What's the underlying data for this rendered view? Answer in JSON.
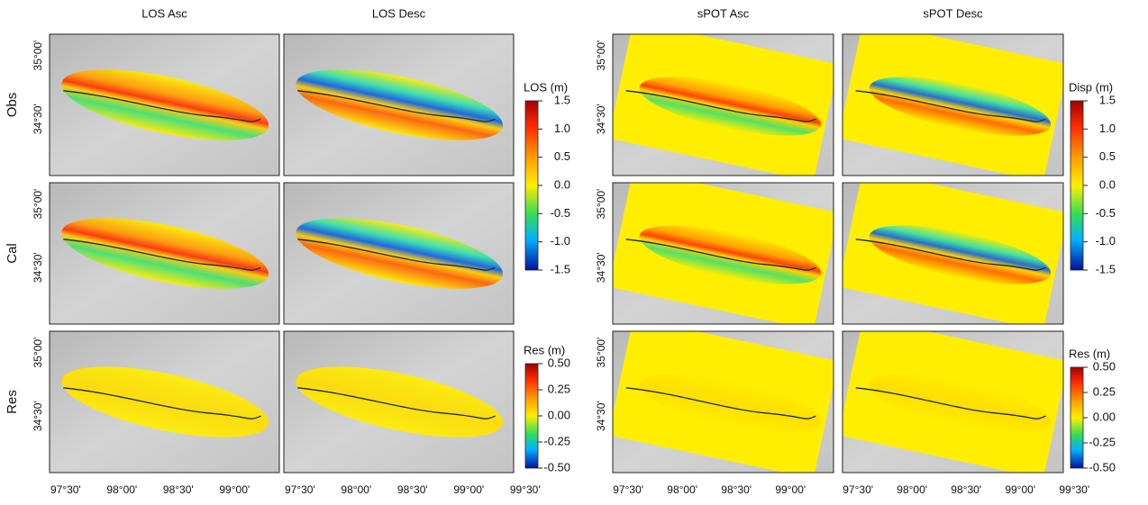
{
  "columns": [
    "LOS Asc",
    "LOS Desc",
    "sPOT Asc",
    "sPOT Desc"
  ],
  "rows": [
    "Obs",
    "Cal",
    "Res"
  ],
  "lon_ticks": [
    "97°30'",
    "98°00'",
    "98°30'",
    "99°00'",
    "99°30'"
  ],
  "lat_ticks": [
    "35°00'",
    "34°30'"
  ],
  "colorbars": [
    {
      "label": "LOS (m)",
      "lim": [
        -1.5,
        1.5
      ],
      "ticks": [
        1.5,
        {
          "value": 1,
          "label": "1.0"
        },
        0.5,
        {
          "value": 0,
          "label": "0.0"
        },
        -0.5,
        {
          "value": -1,
          "label": "-1.0"
        },
        -1.5
      ]
    },
    {
      "label": "Res (m)",
      "lim": [
        -0.5,
        0.5
      ],
      "ticks": [
        {
          "value": 0.5,
          "label": "0.50"
        },
        0.25,
        {
          "value": 0,
          "label": "0.00"
        },
        -0.25,
        {
          "value": -0.5,
          "label": "-0.50"
        }
      ]
    },
    {
      "label": "Disp (m)",
      "lim": [
        -1.5,
        1.5
      ],
      "ticks": [
        1.5,
        {
          "value": 1,
          "label": "1.0"
        },
        0.5,
        {
          "value": 0,
          "label": "0.0"
        },
        -0.5,
        {
          "value": -1,
          "label": "-1.0"
        },
        -1.5
      ]
    },
    {
      "label": "Res (m)",
      "lim": [
        -0.5,
        0.5
      ],
      "ticks": [
        {
          "value": 0.5,
          "label": "0.50"
        },
        0.25,
        {
          "value": 0,
          "label": "0.00"
        },
        -0.25,
        {
          "value": -0.5,
          "label": "-0.50"
        }
      ]
    }
  ]
}
